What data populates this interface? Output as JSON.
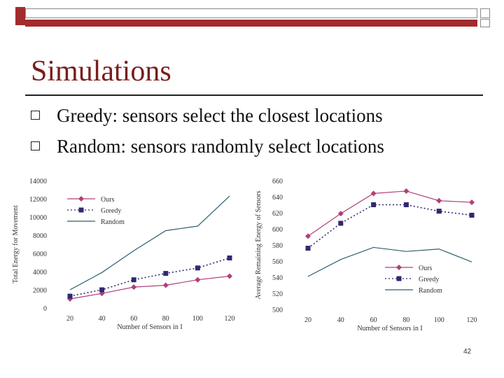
{
  "slide": {
    "title": "Simulations",
    "bullets": [
      "Greedy: sensors select the closest locations",
      "Random: sensors randomly select locations"
    ],
    "page_number": "42",
    "colors": {
      "accent": "#a32b2b",
      "title": "#7a1e1e"
    }
  },
  "chart_data": [
    {
      "type": "line",
      "ylabel": "Total Energy for Movement",
      "xlabel": "Number of Sensors in I",
      "x": [
        20,
        40,
        60,
        80,
        100,
        120
      ],
      "x_tick_labels": [
        "20",
        "40",
        "60",
        "80",
        "100",
        "120"
      ],
      "ylim": [
        0,
        14000
      ],
      "y_ticks": [
        0,
        2000,
        4000,
        6000,
        8000,
        10000,
        12000,
        14000
      ],
      "legend_position": "top-left",
      "grid": false,
      "series": [
        {
          "name": "Ours",
          "marker": "diamond",
          "dash": "solid",
          "color": "#b0407a",
          "values": [
            1000,
            1600,
            2300,
            2500,
            3100,
            3500
          ]
        },
        {
          "name": "Greedy",
          "marker": "square",
          "dash": "dotted",
          "color": "#2e2a6e",
          "values": [
            1300,
            2000,
            3100,
            3800,
            4400,
            5500
          ]
        },
        {
          "name": "Random",
          "marker": "none",
          "dash": "solid",
          "color": "#2e5e6e",
          "values": [
            2000,
            3900,
            6300,
            8500,
            9000,
            12300
          ]
        }
      ]
    },
    {
      "type": "line",
      "ylabel": "Average Remaining Energy of Sensors",
      "xlabel": "Number of Sensors in I",
      "x": [
        20,
        40,
        60,
        80,
        100,
        120
      ],
      "x_tick_labels": [
        "20",
        "40",
        "60",
        "80",
        "100",
        "120"
      ],
      "ylim": [
        500,
        660
      ],
      "y_ticks": [
        500,
        520,
        540,
        560,
        580,
        600,
        620,
        640,
        660
      ],
      "legend_position": "bottom-right",
      "grid": false,
      "series": [
        {
          "name": "Ours",
          "marker": "diamond",
          "dash": "solid",
          "color": "#b0407a",
          "values": [
            591,
            619,
            644,
            647,
            635,
            633
          ]
        },
        {
          "name": "Greedy",
          "marker": "square",
          "dash": "dotted",
          "color": "#2e2a6e",
          "values": [
            576,
            607,
            630,
            630,
            622,
            617
          ]
        },
        {
          "name": "Random",
          "marker": "none",
          "dash": "solid",
          "color": "#2e5e6e",
          "values": [
            541,
            562,
            577,
            572,
            575,
            559
          ]
        }
      ]
    }
  ]
}
